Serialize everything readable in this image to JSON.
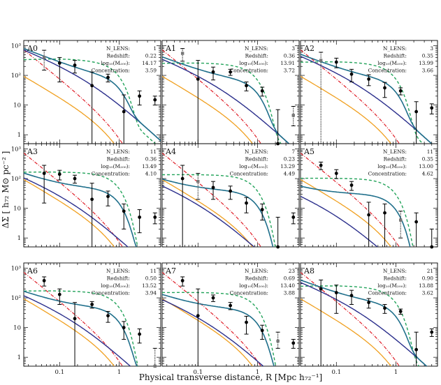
{
  "figure": {
    "xlabel": "Physical transverse distance,  R [Mpc h₇₂⁻¹]",
    "ylabel": "ΔΣ  [ h₇₂ M⊙ pc⁻² ]",
    "x_tick_labels": [
      "0.1",
      "1"
    ],
    "y_tick_labels": [
      "1",
      "10",
      "10²",
      "10³"
    ],
    "info_labels": [
      "N_LENS:",
      "Redshift:",
      "log₁₀(M₂₀₀):",
      "Concentration:"
    ]
  },
  "colors": {
    "nfw": "#2b2f8c",
    "total": "#1f6f8b",
    "two_halo": "#22a35a",
    "baryon": "#f0a020",
    "offset": "#e0202a",
    "data": "#000000",
    "excluded": "#777777"
  },
  "chart_data": [
    {
      "panel": "A0",
      "type": "scatter",
      "n_lens": "1",
      "redshift": "0.22",
      "log_m200": "14.17",
      "concentration": "3.59",
      "xscale": "log",
      "yscale": "log",
      "xlim": [
        0.025,
        5
      ],
      "ylim": [
        0.5,
        1500
      ],
      "points": [
        {
          "x": 0.055,
          "y": 400,
          "lo": 150,
          "hi": 700,
          "excluded": true
        },
        {
          "x": 0.1,
          "y": 260,
          "lo": 60,
          "hi": 400
        },
        {
          "x": 0.18,
          "y": 220,
          "lo": 120,
          "hi": 320
        },
        {
          "x": 0.35,
          "y": 45,
          "lo": 0.3,
          "hi": 130
        },
        {
          "x": 0.65,
          "y": 85,
          "lo": 60,
          "hi": 110
        },
        {
          "x": 1.2,
          "y": 6,
          "lo": 0.3,
          "hi": 22
        },
        {
          "x": 2.2,
          "y": 20,
          "lo": 10,
          "hi": 30
        },
        {
          "x": 4.0,
          "y": 15,
          "lo": 10,
          "hi": 20
        }
      ]
    },
    {
      "panel": "A1",
      "type": "scatter",
      "n_lens": "3",
      "redshift": "0.36",
      "log_m200": "13.91",
      "concentration": "3.72",
      "xscale": "log",
      "yscale": "log",
      "xlim": [
        0.025,
        5
      ],
      "ylim": [
        0.5,
        1500
      ],
      "points": [
        {
          "x": 0.055,
          "y": 550,
          "lo": 300,
          "hi": 800,
          "excluded": true
        },
        {
          "x": 0.1,
          "y": 75,
          "lo": 0.3,
          "hi": 320
        },
        {
          "x": 0.18,
          "y": 130,
          "lo": 70,
          "hi": 190
        },
        {
          "x": 0.35,
          "y": 130,
          "lo": 100,
          "hi": 160
        },
        {
          "x": 0.65,
          "y": 45,
          "lo": 30,
          "hi": 60
        },
        {
          "x": 1.2,
          "y": 30,
          "lo": 20,
          "hi": 40
        },
        {
          "x": 2.2,
          "y": 0.5,
          "lo": 0.3,
          "hi": 7
        },
        {
          "x": 4.0,
          "y": 4.5,
          "lo": 2,
          "hi": 9,
          "excluded": true
        }
      ]
    },
    {
      "panel": "A2",
      "type": "scatter",
      "n_lens": "3",
      "redshift": "0.35",
      "log_m200": "13.99",
      "concentration": "3.66",
      "xscale": "log",
      "yscale": "log",
      "xlim": [
        0.025,
        5
      ],
      "ylim": [
        0.5,
        1500
      ],
      "points": [
        {
          "x": 0.055,
          "y": 320,
          "lo": 0.3,
          "hi": 600,
          "excluded": true
        },
        {
          "x": 0.1,
          "y": 280,
          "lo": 180,
          "hi": 380
        },
        {
          "x": 0.18,
          "y": 110,
          "lo": 60,
          "hi": 160
        },
        {
          "x": 0.35,
          "y": 75,
          "lo": 45,
          "hi": 105
        },
        {
          "x": 0.65,
          "y": 38,
          "lo": 18,
          "hi": 58
        },
        {
          "x": 1.2,
          "y": 30,
          "lo": 22,
          "hi": 38
        },
        {
          "x": 2.2,
          "y": 6,
          "lo": 0.3,
          "hi": 13
        },
        {
          "x": 4.0,
          "y": 8,
          "lo": 5,
          "hi": 11
        }
      ]
    },
    {
      "panel": "A3",
      "type": "scatter",
      "n_lens": "11",
      "redshift": "0.36",
      "log_m200": "13.49",
      "concentration": "4.10",
      "xscale": "log",
      "yscale": "log",
      "xlim": [
        0.025,
        5
      ],
      "ylim": [
        0.5,
        1500
      ],
      "points": [
        {
          "x": 0.055,
          "y": 150,
          "lo": 15,
          "hi": 280
        },
        {
          "x": 0.1,
          "y": 140,
          "lo": 90,
          "hi": 190
        },
        {
          "x": 0.18,
          "y": 100,
          "lo": 70,
          "hi": 130
        },
        {
          "x": 0.35,
          "y": 20,
          "lo": 0.3,
          "hi": 70
        },
        {
          "x": 0.65,
          "y": 25,
          "lo": 12,
          "hi": 38
        },
        {
          "x": 1.2,
          "y": 8,
          "lo": 2,
          "hi": 14
        },
        {
          "x": 2.2,
          "y": 5,
          "lo": 1.5,
          "hi": 9
        },
        {
          "x": 4.0,
          "y": 5,
          "lo": 3,
          "hi": 7
        }
      ]
    },
    {
      "panel": "A4",
      "type": "scatter",
      "n_lens": "7",
      "redshift": "0.23",
      "log_m200": "13.29",
      "concentration": "4.49",
      "xscale": "log",
      "yscale": "log",
      "xlim": [
        0.025,
        5
      ],
      "ylim": [
        0.5,
        1500
      ],
      "points": [
        {
          "x": 0.055,
          "y": 100,
          "lo": 0.3,
          "hi": 280
        },
        {
          "x": 0.1,
          "y": 80,
          "lo": 20,
          "hi": 150,
          "excluded": true
        },
        {
          "x": 0.18,
          "y": 50,
          "lo": 20,
          "hi": 80
        },
        {
          "x": 0.35,
          "y": 38,
          "lo": 20,
          "hi": 56
        },
        {
          "x": 0.65,
          "y": 15,
          "lo": 7,
          "hi": 23
        },
        {
          "x": 1.2,
          "y": 9,
          "lo": 4,
          "hi": 14
        },
        {
          "x": 2.2,
          "y": 0.5,
          "lo": 0.3,
          "hi": 5
        },
        {
          "x": 4.0,
          "y": 5,
          "lo": 3,
          "hi": 7
        }
      ]
    },
    {
      "panel": "A5",
      "type": "scatter",
      "n_lens": "11",
      "redshift": "0.35",
      "log_m200": "13.00",
      "concentration": "4.62",
      "xscale": "log",
      "yscale": "log",
      "xlim": [
        0.025,
        5
      ],
      "ylim": [
        0.5,
        1500
      ],
      "points": [
        {
          "x": 0.055,
          "y": 280,
          "lo": 200,
          "hi": 360
        },
        {
          "x": 0.1,
          "y": 150,
          "lo": 100,
          "hi": 200
        },
        {
          "x": 0.18,
          "y": 60,
          "lo": 40,
          "hi": 80
        },
        {
          "x": 0.35,
          "y": 6,
          "lo": 0.3,
          "hi": 16
        },
        {
          "x": 0.65,
          "y": 7,
          "lo": 0.3,
          "hi": 14
        },
        {
          "x": 1.2,
          "y": 4,
          "lo": 1,
          "hi": 8,
          "excluded": true
        },
        {
          "x": 2.2,
          "y": 3.5,
          "lo": 0.3,
          "hi": 7
        },
        {
          "x": 4.0,
          "y": 0.5,
          "lo": 0.3,
          "hi": 2
        }
      ]
    },
    {
      "panel": "A6",
      "type": "scatter",
      "n_lens": "11",
      "redshift": "0.50",
      "log_m200": "13.52",
      "concentration": "3.94",
      "xscale": "log",
      "yscale": "log",
      "xlim": [
        0.025,
        5
      ],
      "ylim": [
        0.5,
        1500
      ],
      "points": [
        {
          "x": 0.055,
          "y": 380,
          "lo": 250,
          "hi": 510
        },
        {
          "x": 0.1,
          "y": 130,
          "lo": 60,
          "hi": 200
        },
        {
          "x": 0.18,
          "y": 20,
          "lo": 0.3,
          "hi": 70
        },
        {
          "x": 0.35,
          "y": 60,
          "lo": 45,
          "hi": 75
        },
        {
          "x": 0.65,
          "y": 25,
          "lo": 15,
          "hi": 35
        },
        {
          "x": 1.2,
          "y": 10,
          "lo": 4,
          "hi": 16
        },
        {
          "x": 2.2,
          "y": 6,
          "lo": 3,
          "hi": 9
        },
        {
          "x": 4.0,
          "y": 0.5,
          "lo": 0.3,
          "hi": 2,
          "excluded": true
        }
      ]
    },
    {
      "panel": "A7",
      "type": "scatter",
      "n_lens": "23",
      "redshift": "0.69",
      "log_m200": "13.40",
      "concentration": "3.88",
      "xscale": "log",
      "yscale": "log",
      "xlim": [
        0.025,
        5
      ],
      "ylim": [
        0.5,
        1500
      ],
      "points": [
        {
          "x": 0.055,
          "y": 380,
          "lo": 250,
          "hi": 510
        },
        {
          "x": 0.1,
          "y": 25,
          "lo": 0.3,
          "hi": 200
        },
        {
          "x": 0.18,
          "y": 100,
          "lo": 75,
          "hi": 125
        },
        {
          "x": 0.35,
          "y": 55,
          "lo": 40,
          "hi": 70
        },
        {
          "x": 0.65,
          "y": 15,
          "lo": 6,
          "hi": 24
        },
        {
          "x": 1.2,
          "y": 8,
          "lo": 4,
          "hi": 12
        },
        {
          "x": 2.2,
          "y": 3.5,
          "lo": 2,
          "hi": 7,
          "excluded": true
        },
        {
          "x": 4.0,
          "y": 3,
          "lo": 2,
          "hi": 4
        }
      ]
    },
    {
      "panel": "A8",
      "type": "scatter",
      "n_lens": "21",
      "redshift": "0.90",
      "log_m200": "13.88",
      "concentration": "3.62",
      "xscale": "log",
      "yscale": "log",
      "xlim": [
        0.025,
        5
      ],
      "ylim": [
        0.5,
        1500
      ],
      "points": [
        {
          "x": 0.055,
          "y": 200,
          "lo": 0.3,
          "hi": 400
        },
        {
          "x": 0.1,
          "y": 150,
          "lo": 30,
          "hi": 270
        },
        {
          "x": 0.18,
          "y": 120,
          "lo": 60,
          "hi": 180
        },
        {
          "x": 0.35,
          "y": 70,
          "lo": 45,
          "hi": 95
        },
        {
          "x": 0.65,
          "y": 45,
          "lo": 30,
          "hi": 60
        },
        {
          "x": 1.2,
          "y": 35,
          "lo": 28,
          "hi": 42
        },
        {
          "x": 2.2,
          "y": 1.8,
          "lo": 0.3,
          "hi": 7
        },
        {
          "x": 4.0,
          "y": 7,
          "lo": 5,
          "hi": 9
        }
      ]
    }
  ]
}
